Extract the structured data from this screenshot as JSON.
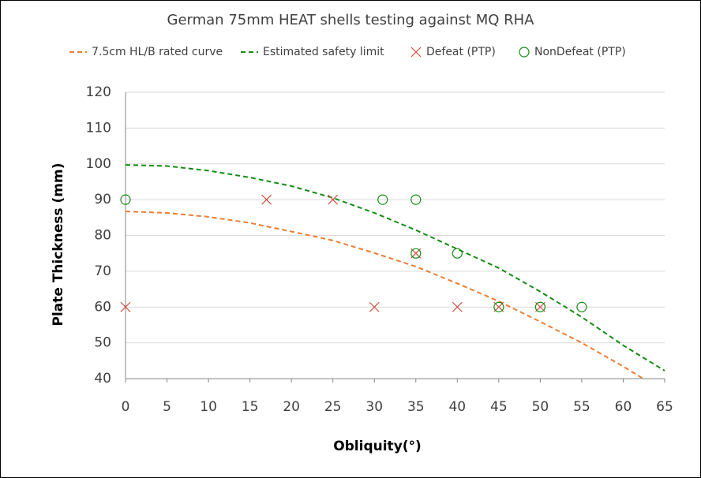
{
  "chart_data": {
    "type": "line",
    "title": "German 75mm HEAT shells testing against MQ RHA",
    "x_label": "Obliquity(°)",
    "y_label": "Plate Thickness (mm)",
    "xlim": [
      0,
      65
    ],
    "xticks": [
      0,
      5,
      10,
      15,
      20,
      25,
      30,
      35,
      40,
      45,
      50,
      55,
      60,
      65
    ],
    "ylim": [
      40,
      120
    ],
    "yticks": [
      40,
      50,
      60,
      70,
      80,
      90,
      100,
      110,
      120
    ],
    "grid": true,
    "legend": "top",
    "series": [
      {
        "name": "7.5cm HL/B rated curve",
        "color": "#ed7d31",
        "mode": "dashed-line",
        "x": [
          0,
          5,
          10,
          15,
          20,
          25,
          30,
          35,
          40,
          45,
          50,
          55,
          60,
          62.4
        ],
        "values": [
          86.7,
          86.3,
          85.2,
          83.5,
          81.1,
          78.6,
          75.1,
          71.3,
          66.6,
          61.6,
          55.9,
          50,
          43.4,
          40
        ]
      },
      {
        "name": "Estimated safety limit",
        "color": "#138c13",
        "mode": "dashed-line",
        "x": [
          0,
          5,
          10,
          15,
          20,
          25,
          30,
          35,
          40,
          45,
          50,
          55,
          60,
          65
        ],
        "values": [
          99.7,
          99.4,
          98.1,
          96.2,
          93.8,
          90.5,
          86.3,
          81.5,
          76.2,
          70.9,
          64.3,
          57.2,
          49.3,
          42.2
        ]
      },
      {
        "name": "Defeat (PTP)",
        "color": "#d04a3c",
        "mode": "x-marker",
        "x": [
          0,
          17,
          25,
          30,
          35,
          40,
          45,
          50
        ],
        "values": [
          60,
          90,
          90,
          60,
          75,
          60,
          60,
          60
        ]
      },
      {
        "name": "NonDefeat (PTP)",
        "color": "#138c13",
        "mode": "circle-marker",
        "x": [
          0,
          31,
          35,
          35,
          40,
          45,
          50,
          55
        ],
        "values": [
          90,
          90,
          90,
          75,
          75,
          60,
          60,
          60
        ]
      }
    ]
  }
}
